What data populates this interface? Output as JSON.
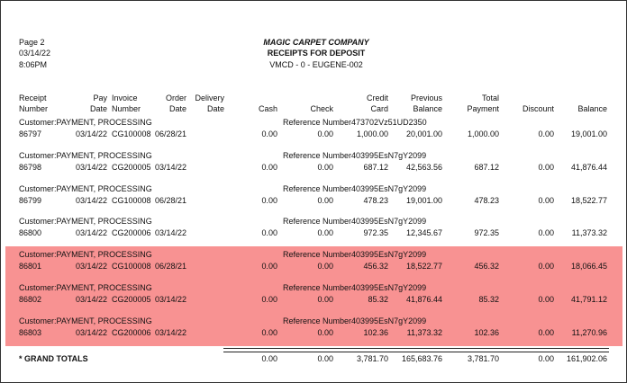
{
  "header": {
    "page": "Page  2",
    "date": "03/14/22",
    "time": "8:06PM",
    "company": "MAGIC CARPET COMPANY",
    "report_title": "RECEIPTS FOR DEPOSIT",
    "subtitle": "VMCD - 0 - EUGENE-002"
  },
  "table": {
    "columns": [
      [
        "Receipt",
        "Number"
      ],
      [
        "Pay",
        "Date"
      ],
      [
        "Invoice",
        "Number"
      ],
      [
        "Order",
        "Date"
      ],
      [
        "Delivery",
        "Date"
      ],
      [
        "Cash"
      ],
      [
        "Check"
      ],
      [
        "Credit",
        "Card"
      ],
      [
        "Previous",
        "Balance"
      ],
      [
        "Total",
        "Payment"
      ],
      [
        "Discount"
      ],
      [
        "Balance"
      ]
    ],
    "records": [
      {
        "customer": "Customer:PAYMENT, PROCESSING",
        "reference": "Reference Number473702Vz51UD2350",
        "highlighted": false,
        "cells": [
          "86797",
          "03/14/22",
          "CG100008",
          "06/28/21",
          "0.00",
          "0.00",
          "1,000.00",
          "20,001.00",
          "1,000.00",
          "0.00",
          "19,001.00"
        ]
      },
      {
        "customer": "Customer:PAYMENT, PROCESSING",
        "reference": "Reference Number403995EsN7gY2099",
        "highlighted": false,
        "cells": [
          "86798",
          "03/14/22",
          "CG200005",
          "03/14/22",
          "0.00",
          "0.00",
          "687.12",
          "42,563.56",
          "687.12",
          "0.00",
          "41,876.44"
        ]
      },
      {
        "customer": "Customer:PAYMENT, PROCESSING",
        "reference": "Reference Number403995EsN7gY2099",
        "highlighted": false,
        "cells": [
          "86799",
          "03/14/22",
          "CG100008",
          "06/28/21",
          "0.00",
          "0.00",
          "478.23",
          "19,001.00",
          "478.23",
          "0.00",
          "18,522.77"
        ]
      },
      {
        "customer": "Customer:PAYMENT, PROCESSING",
        "reference": "Reference Number403995EsN7gY2099",
        "highlighted": false,
        "cells": [
          "86800",
          "03/14/22",
          "CG200006",
          "03/14/22",
          "0.00",
          "0.00",
          "972.35",
          "12,345.67",
          "972.35",
          "0.00",
          "11,373.32"
        ]
      },
      {
        "customer": "Customer:PAYMENT, PROCESSING",
        "reference": "Reference Number403995EsN7gY2099",
        "highlighted": true,
        "cells": [
          "86801",
          "03/14/22",
          "CG100008",
          "06/28/21",
          "0.00",
          "0.00",
          "456.32",
          "18,522.77",
          "456.32",
          "0.00",
          "18,066.45"
        ]
      },
      {
        "customer": "Customer:PAYMENT, PROCESSING",
        "reference": "Reference Number403995EsN7gY2099",
        "highlighted": true,
        "cells": [
          "86802",
          "03/14/22",
          "CG200005",
          "03/14/22",
          "0.00",
          "0.00",
          "85.32",
          "41,876.44",
          "85.32",
          "0.00",
          "41,791.12"
        ]
      },
      {
        "customer": "Customer:PAYMENT, PROCESSING",
        "reference": "Reference Number403995EsN7gY2099",
        "highlighted": true,
        "cells": [
          "86803",
          "03/14/22",
          "CG200006",
          "03/14/22",
          "0.00",
          "0.00",
          "102.36",
          "11,373.32",
          "102.36",
          "0.00",
          "11,270.96"
        ]
      }
    ],
    "totals": {
      "label": "* GRAND TOTALS",
      "cells": [
        "0.00",
        "0.00",
        "3,781.70",
        "165,683.76",
        "3,781.70",
        "0.00",
        "161,902.06"
      ]
    }
  }
}
